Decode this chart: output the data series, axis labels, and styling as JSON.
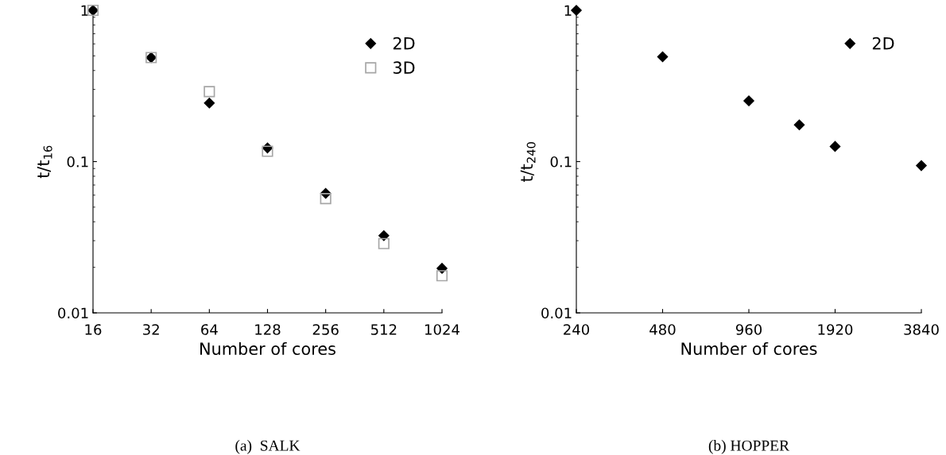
{
  "chart_data": [
    {
      "type": "scatter",
      "xlabel": "Number of cores",
      "ylabel": "t/t$_{16}$",
      "log": "xy",
      "x": [
        16,
        32,
        64,
        128,
        256,
        512,
        1024
      ],
      "series": [
        {
          "name": "2D",
          "color": "#000000",
          "marker": "diamond",
          "values": [
            1,
            0.487,
            0.244,
            0.123,
            0.0617,
            0.0324,
            0.0197
          ]
        },
        {
          "name": "3D",
          "color": "#a6a6a6",
          "marker": "square",
          "values": [
            1,
            0.487,
            0.29,
            0.117,
            0.0569,
            0.0287,
            0.0176
          ]
        }
      ],
      "xlim": [
        16,
        1024
      ],
      "xticks": [
        16,
        32,
        64,
        128,
        256,
        512,
        1024
      ],
      "ylim": [
        0.01,
        1
      ],
      "yticks": [
        0.01,
        0.1,
        1
      ],
      "grid": false,
      "legend": "top right",
      "annotations": [
        "(a)  SALK"
      ]
    },
    {
      "type": "scatter",
      "xlabel": "Number of cores",
      "ylabel": "t/t$_{240}$",
      "log": "xy",
      "x": [
        240,
        480,
        960,
        1440,
        1920,
        3840
      ],
      "series": [
        {
          "name": "2D",
          "color": "#000000",
          "marker": "diamond",
          "values": [
            1,
            0.493,
            0.252,
            0.175,
            0.126,
            0.094
          ]
        }
      ],
      "xlim": [
        240,
        3840
      ],
      "xticks": [
        240,
        480,
        960,
        1920,
        3840
      ],
      "ylim": [
        0.01,
        1
      ],
      "yticks": [
        0.01,
        0.1,
        1
      ],
      "grid": false,
      "legend": "top right",
      "annotations": [
        "(b) HOPPER"
      ]
    }
  ]
}
